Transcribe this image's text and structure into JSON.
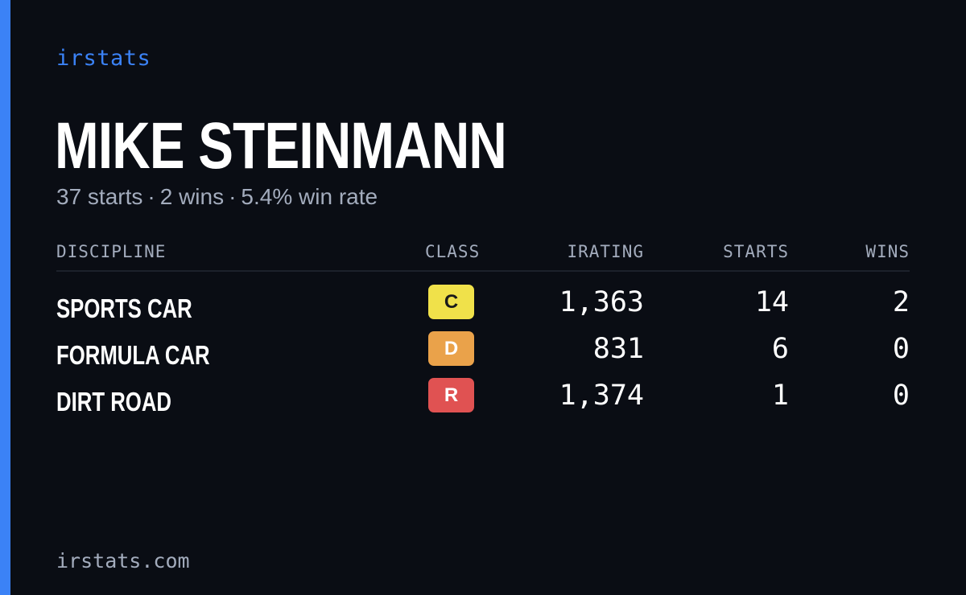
{
  "brand": "irstats",
  "driver": {
    "name": "MIKE STEINMANN"
  },
  "summary": {
    "starts": "37 starts",
    "wins": "2 wins",
    "win_rate": "5.4% win rate",
    "separator": "·"
  },
  "table": {
    "headers": {
      "discipline": "DISCIPLINE",
      "class": "CLASS",
      "irating": "IRATING",
      "starts": "STARTS",
      "wins": "WINS"
    },
    "rows": [
      {
        "discipline": "SPORTS CAR",
        "class": "C",
        "class_color": "#f0e14a",
        "class_text_color": "#1a1a1a",
        "irating": "1,363",
        "starts": "14",
        "wins": "2"
      },
      {
        "discipline": "FORMULA CAR",
        "class": "D",
        "class_color": "#eaa24a",
        "class_text_color": "#ffffff",
        "irating": "831",
        "starts": "6",
        "wins": "0"
      },
      {
        "discipline": "DIRT ROAD",
        "class": "R",
        "class_color": "#e05252",
        "class_text_color": "#ffffff",
        "irating": "1,374",
        "starts": "1",
        "wins": "0"
      }
    ]
  },
  "footer": {
    "url": "irstats.com"
  },
  "colors": {
    "background": "#0a0d14",
    "accent": "#3b82f6",
    "muted_text": "#a3acbd",
    "divider": "#1c212b"
  }
}
